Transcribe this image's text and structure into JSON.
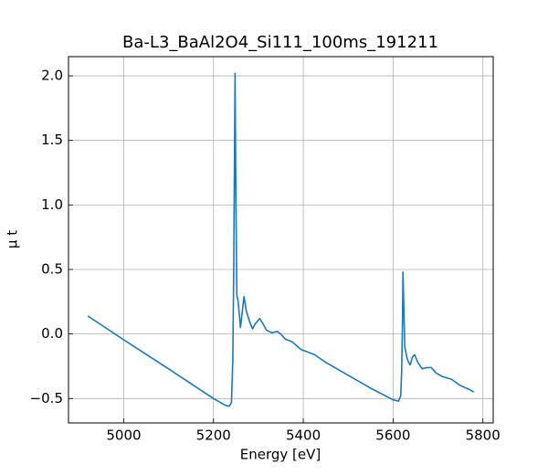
{
  "chart_data": {
    "type": "line",
    "title": "Ba-L3_BaAl2O4_Si111_100ms_191211",
    "xlabel": "Energy [eV]",
    "ylabel": "μ t",
    "color": "#1f77b4",
    "grid": true,
    "x": [
      4920,
      5000,
      5100,
      5200,
      5225,
      5235,
      5240,
      5243,
      5245,
      5247,
      5248,
      5250,
      5252,
      5255,
      5260,
      5265,
      5268,
      5273,
      5280,
      5287,
      5293,
      5303,
      5310,
      5318,
      5330,
      5342,
      5350,
      5360,
      5375,
      5395,
      5410,
      5425,
      5450,
      5500,
      5550,
      5600,
      5612,
      5617,
      5619,
      5621,
      5622,
      5624,
      5626,
      5632,
      5638,
      5643,
      5648,
      5655,
      5665,
      5675,
      5685,
      5695,
      5710,
      5730,
      5750,
      5770,
      5780
    ],
    "values": [
      0.14,
      -0.045,
      -0.27,
      -0.5,
      -0.55,
      -0.56,
      -0.53,
      -0.2,
      0.5,
      1.5,
      2.02,
      1.0,
      0.3,
      0.25,
      0.05,
      0.2,
      0.29,
      0.18,
      0.1,
      0.04,
      0.08,
      0.12,
      0.08,
      0.03,
      0.01,
      0.02,
      0.0,
      -0.04,
      -0.06,
      -0.12,
      -0.14,
      -0.16,
      -0.22,
      -0.32,
      -0.42,
      -0.51,
      -0.52,
      -0.48,
      -0.3,
      0.1,
      0.48,
      0.2,
      -0.1,
      -0.2,
      -0.24,
      -0.18,
      -0.16,
      -0.22,
      -0.27,
      -0.26,
      -0.26,
      -0.3,
      -0.33,
      -0.35,
      -0.4,
      -0.43,
      -0.45
    ],
    "xlim": [
      4877,
      5823
    ],
    "ylim": [
      -0.689,
      2.149
    ],
    "xticks": [
      5000,
      5200,
      5400,
      5600,
      5800
    ],
    "yticks": [
      {
        "value": -0.5,
        "label": "−0.5"
      },
      {
        "value": 0,
        "label": "0.0"
      },
      0.5,
      {
        "value": 1,
        "label": "1.0"
      },
      1.5,
      {
        "value": 2,
        "label": "2.0"
      }
    ]
  }
}
